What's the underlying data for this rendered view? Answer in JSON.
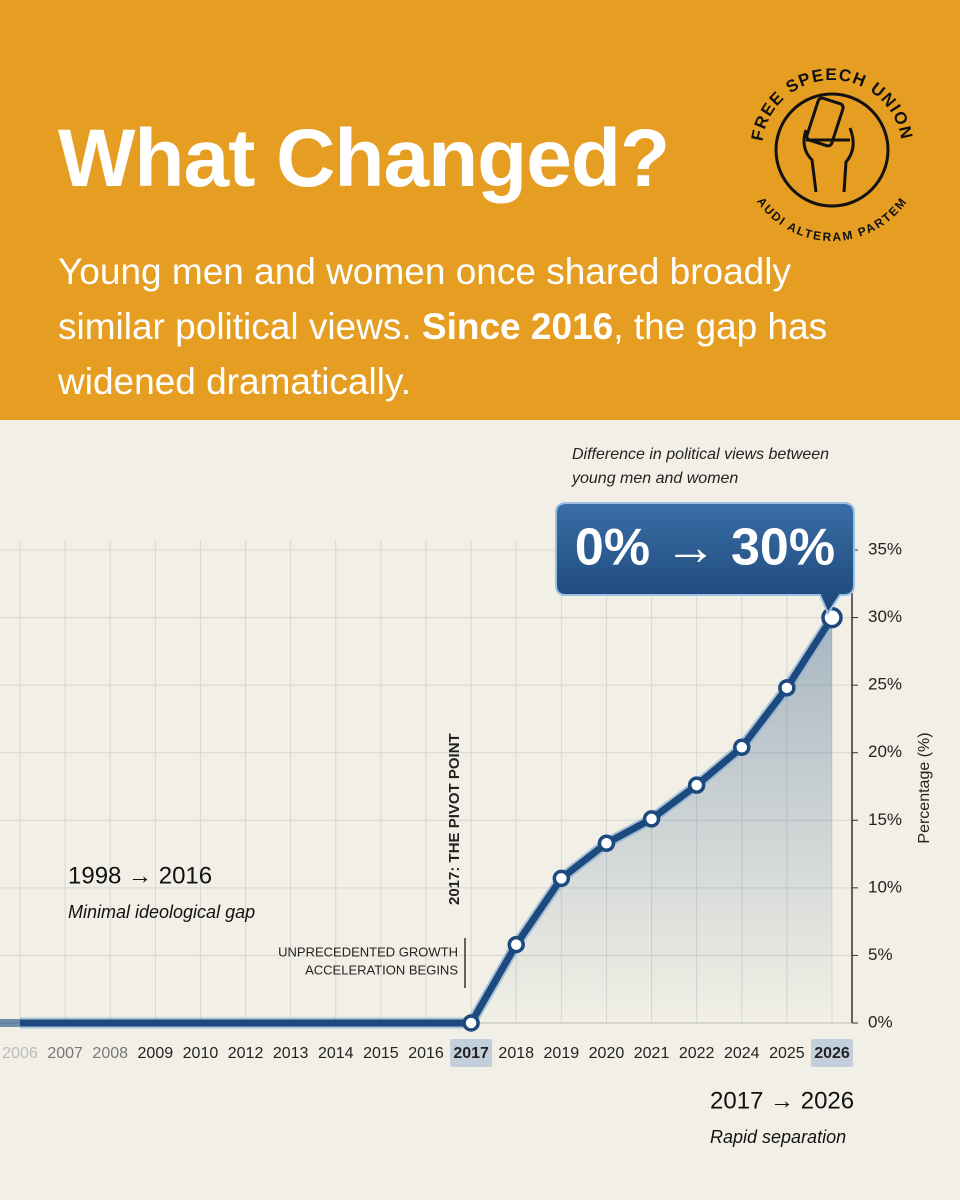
{
  "header": {
    "title": "What Changed?",
    "subtitle": [
      "Young men and women once shared broadly similar political views. ",
      "Since 2016",
      ", the gap has widened dramatically."
    ]
  },
  "logo": {
    "top": "FREE SPEECH UNION",
    "bottom": "AUDI ALTERAM PARTEM"
  },
  "chart_data": {
    "type": "line",
    "caption": [
      "Difference in political views between",
      "young men and women"
    ],
    "callout": "0% → 30%",
    "y_label": "Percentage (%)",
    "pivot_label": "2017: THE PIVOT POINT",
    "pivot_note": [
      "UNPRECEDENTED GROWTH",
      "ACCELERATION BEGINS"
    ],
    "periods": [
      {
        "range": "1998 → 2016",
        "note": "Minimal ideological gap"
      },
      {
        "range": "2017 → 2026",
        "note": "Rapid separation"
      }
    ],
    "categories": [
      "2006",
      "2007",
      "2008",
      "2009",
      "2010",
      "2012",
      "2013",
      "2014",
      "2015",
      "2016",
      "2017",
      "2018",
      "2019",
      "2020",
      "2021",
      "2022",
      "2024",
      "2025",
      "2026"
    ],
    "series": [
      {
        "name": "Difference",
        "color": "#1d4a7e",
        "values": [
          0,
          0,
          0,
          0,
          0,
          0,
          0,
          0,
          0,
          0,
          0,
          5.8,
          10.7,
          13.3,
          15.1,
          17.6,
          20.4,
          24.8,
          30
        ]
      }
    ],
    "ylim": [
      0,
      35
    ],
    "yticks": [
      {
        "value": 0,
        "label": "0%"
      },
      {
        "value": 5,
        "label": "5%"
      },
      {
        "value": 10,
        "label": "10%"
      },
      {
        "value": 15,
        "label": "15%"
      },
      {
        "value": 20,
        "label": "20%"
      },
      {
        "value": 25,
        "label": "25%"
      },
      {
        "value": 30,
        "label": "30%"
      },
      {
        "value": 35,
        "label": "35%"
      }
    ],
    "grid": true
  }
}
